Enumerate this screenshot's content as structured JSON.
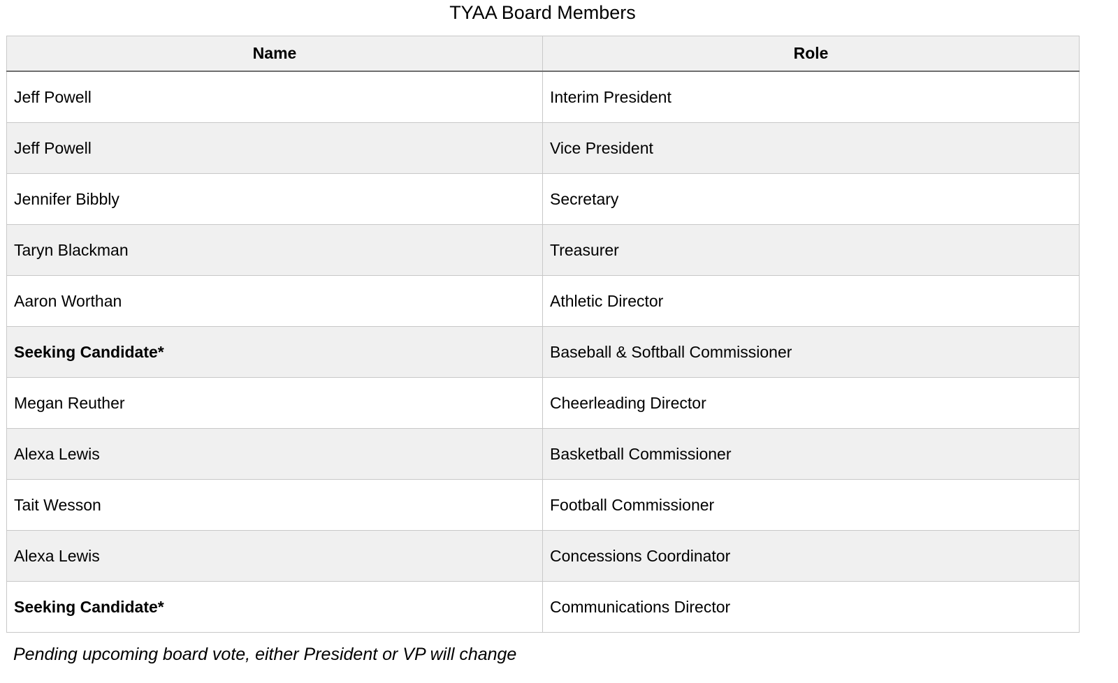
{
  "title": "TYAA Board Members",
  "table": {
    "headers": [
      "Name",
      "Role"
    ],
    "rows": [
      {
        "name": "Jeff Powell",
        "role": "Interim President",
        "bold": false
      },
      {
        "name": "Jeff Powell",
        "role": "Vice President",
        "bold": false
      },
      {
        "name": "Jennifer Bibbly",
        "role": "Secretary",
        "bold": false
      },
      {
        "name": "Taryn Blackman",
        "role": "Treasurer",
        "bold": false
      },
      {
        "name": "Aaron Worthan",
        "role": "Athletic Director",
        "bold": false
      },
      {
        "name": "Seeking Candidate*",
        "role": "Baseball & Softball Commissioner",
        "bold": true
      },
      {
        "name": "Megan Reuther",
        "role": "Cheerleading Director",
        "bold": false
      },
      {
        "name": "Alexa Lewis",
        "role": "Basketball Commissioner",
        "bold": false
      },
      {
        "name": "Tait Wesson",
        "role": "Football Commissioner",
        "bold": false
      },
      {
        "name": "Alexa Lewis",
        "role": "Concessions Coordinator",
        "bold": false
      },
      {
        "name": "Seeking Candidate*",
        "role": "Communications Director",
        "bold": true
      }
    ]
  },
  "footnote": "Pending upcoming board vote, either President or VP will change"
}
